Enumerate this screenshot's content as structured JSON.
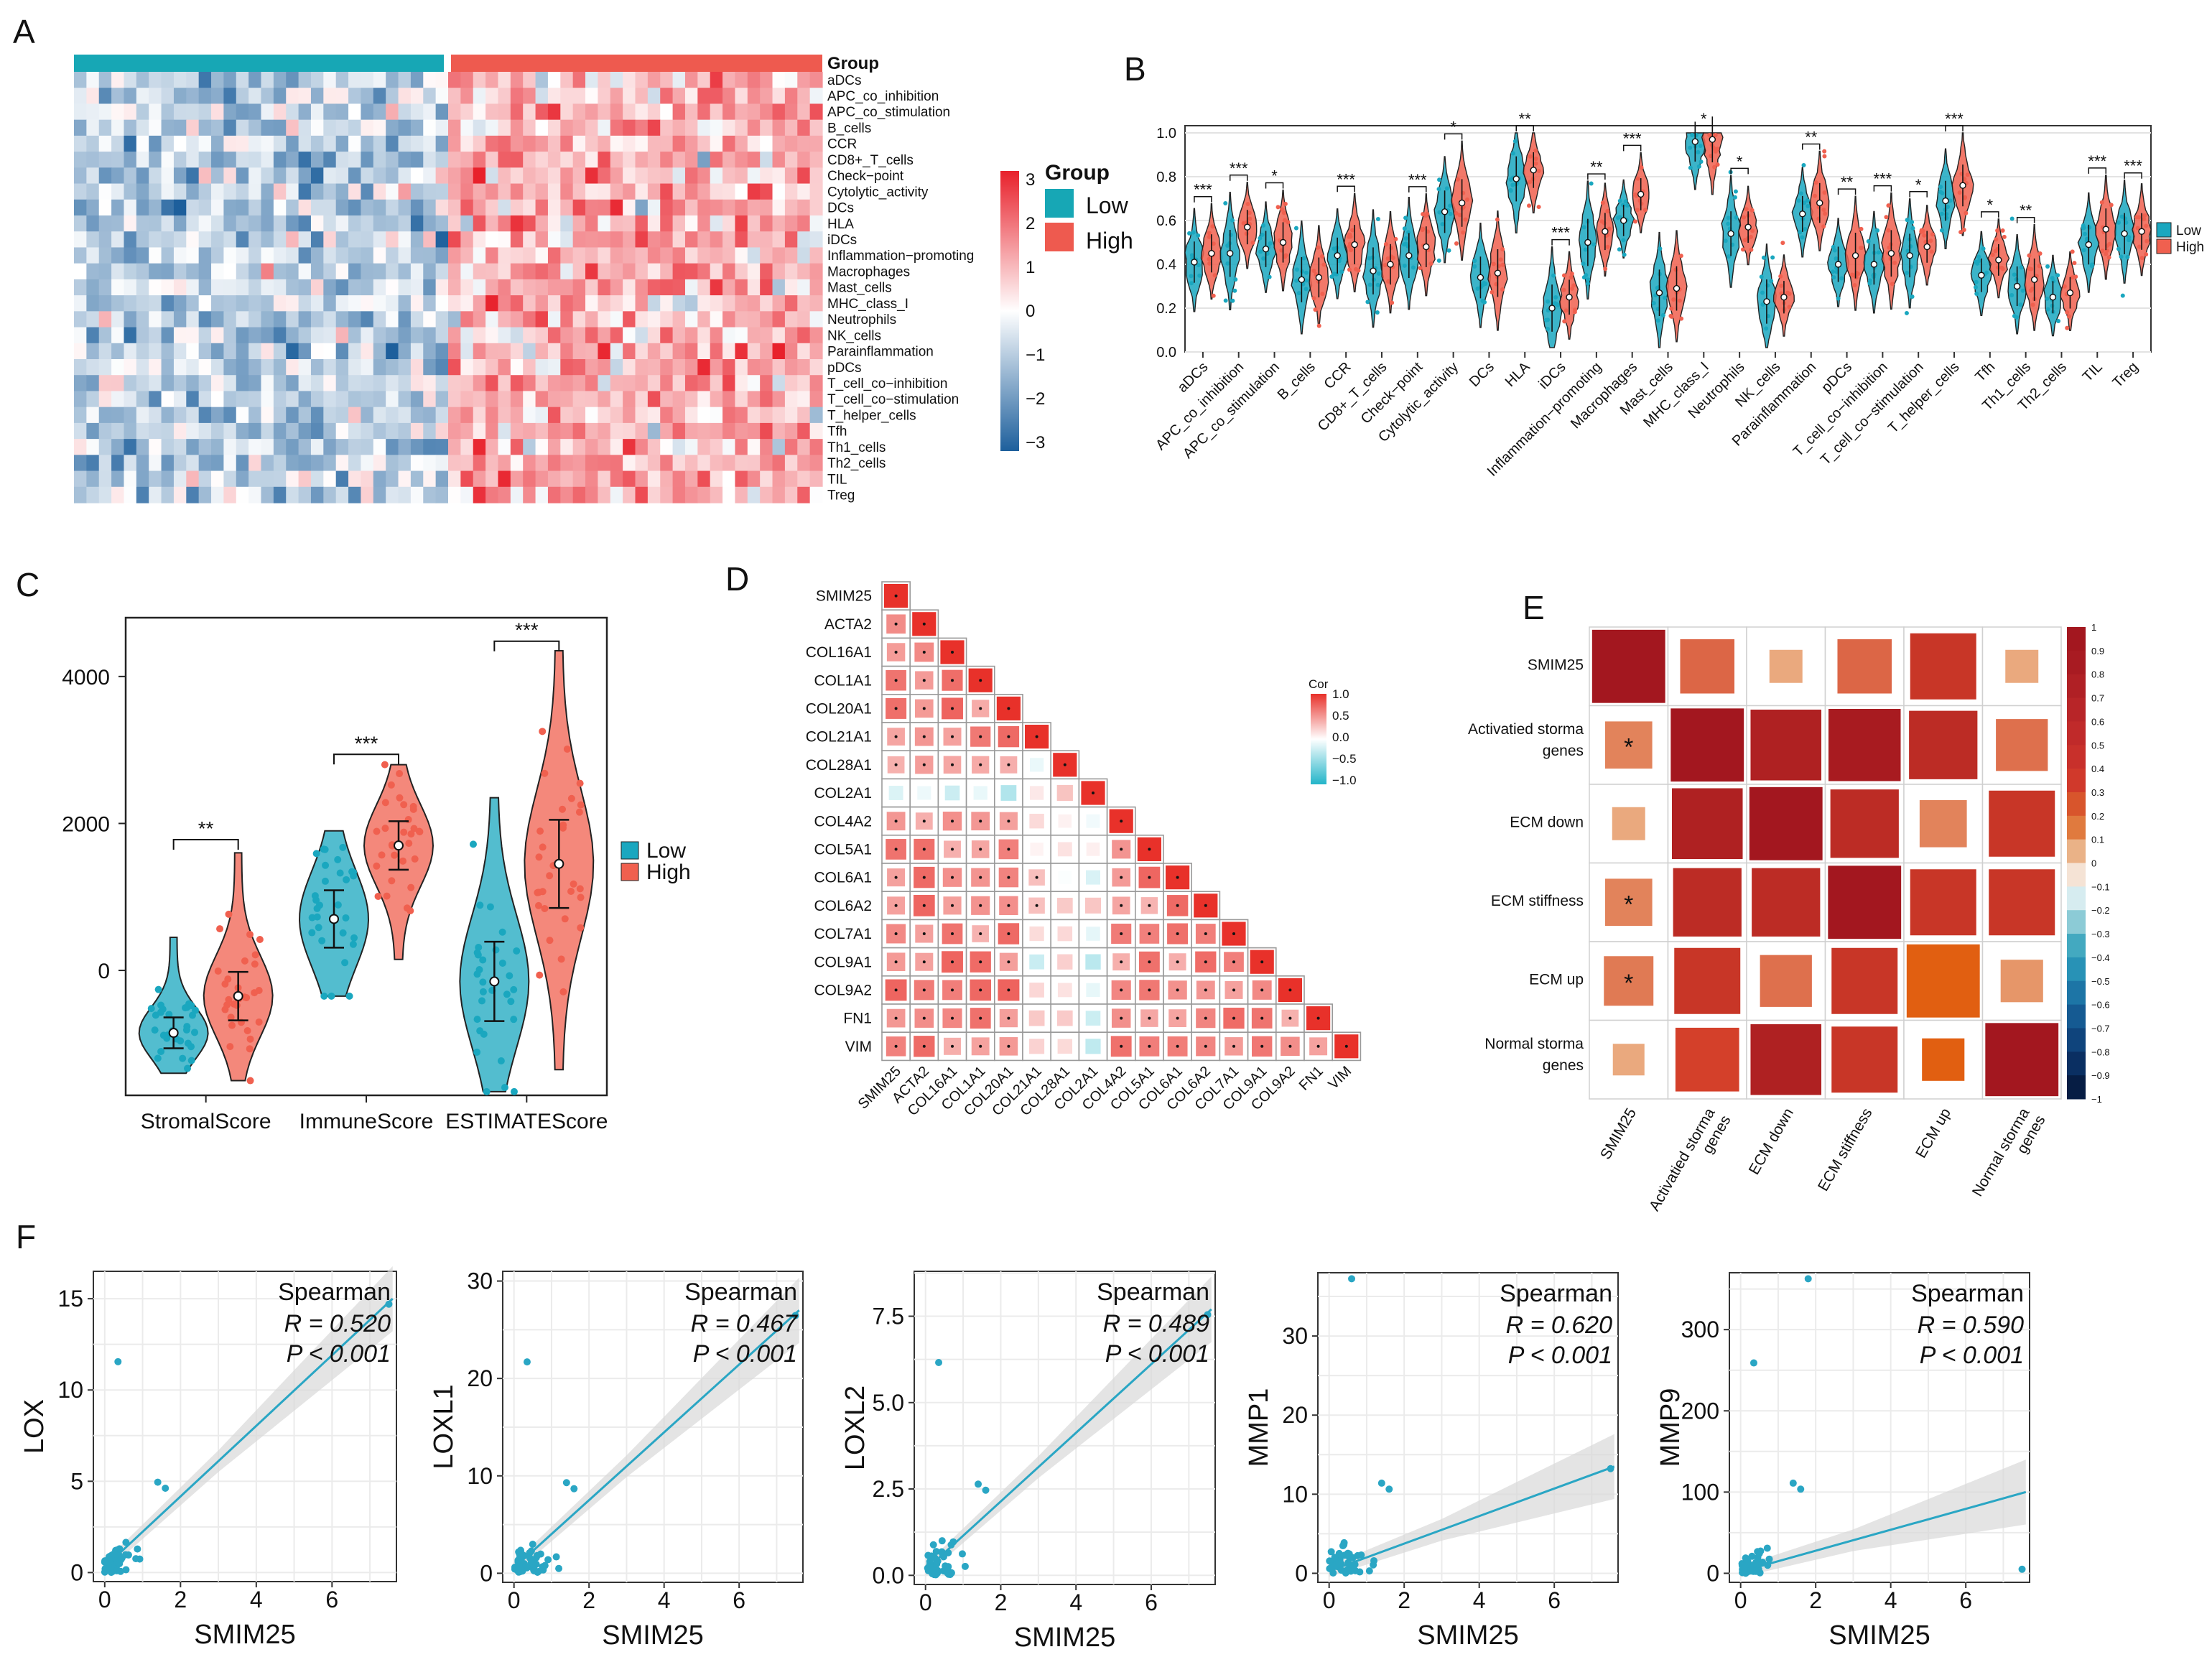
{
  "panel_labels": {
    "A": "A",
    "B": "B",
    "C": "C",
    "D": "D",
    "E": "E",
    "F": "F"
  },
  "colors": {
    "low": "#17a2b8",
    "high": "#ef5b4c",
    "low_fill": "#1aa7bf",
    "high_fill": "#f0604f",
    "fit": "#2aa6c4",
    "ci": "#d8d8d8"
  },
  "chart_data": [
    {
      "panel": "A",
      "type": "heatmap",
      "annotation_title": "Group",
      "legend_title": "Group",
      "groups": [
        "Low",
        "High"
      ],
      "scale_ticks": [
        "3",
        "2",
        "1",
        "0",
        "−1",
        "−2",
        "−3"
      ],
      "rows": [
        "aDCs",
        "APC_co_inhibition",
        "APC_co_stimulation",
        "B_cells",
        "CCR",
        "CD8+_T_cells",
        "Check−point",
        "Cytolytic_activity",
        "DCs",
        "HLA",
        "iDCs",
        "Inflammation−promoting",
        "Macrophages",
        "Mast_cells",
        "MHC_class_I",
        "Neutrophils",
        "NK_cells",
        "Parainflammation",
        "pDCs",
        "T_cell_co−inhibition",
        "T_cell_co−stimulation",
        "T_helper_cells",
        "Tfh",
        "Th1_cells",
        "Th2_cells",
        "TIL",
        "Treg"
      ],
      "n_low": 30,
      "n_high": 30,
      "low_mean": -0.9,
      "high_mean": 1.0
    },
    {
      "panel": "B",
      "type": "violin",
      "yticks": [
        "1.0",
        "0.8",
        "0.6",
        "0.4",
        "0.2",
        "0.0"
      ],
      "ylim": [
        0,
        1.0
      ],
      "legend": [
        "Low",
        "High"
      ],
      "categories": [
        "aDCs",
        "APC_co_inhibition",
        "APC_co_stimulation",
        "B_cells",
        "CCR",
        "CD8+_T_cells",
        "Check−point",
        "Cytolytic_activity",
        "DCs",
        "HLA",
        "iDCs",
        "Inflammation−promoting",
        "Macrophages",
        "Mast_cells",
        "MHC_class_I",
        "Neutrophils",
        "NK_cells",
        "Parainflammation",
        "pDCs",
        "T_cell_co−inhibition",
        "T_cell_co−stimulation",
        "T_helper_cells",
        "Tfh",
        "Th1_cells",
        "Th2_cells",
        "TIL",
        "Treg"
      ],
      "low_medians": [
        0.41,
        0.45,
        0.47,
        0.33,
        0.44,
        0.37,
        0.44,
        0.64,
        0.34,
        0.79,
        0.2,
        0.5,
        0.6,
        0.27,
        0.96,
        0.54,
        0.23,
        0.63,
        0.4,
        0.4,
        0.44,
        0.69,
        0.35,
        0.3,
        0.25,
        0.49,
        0.54
      ],
      "high_medians": [
        0.45,
        0.57,
        0.5,
        0.34,
        0.49,
        0.4,
        0.48,
        0.68,
        0.36,
        0.83,
        0.25,
        0.55,
        0.72,
        0.29,
        0.97,
        0.57,
        0.25,
        0.68,
        0.44,
        0.45,
        0.48,
        0.76,
        0.42,
        0.33,
        0.27,
        0.56,
        0.55
      ],
      "significance": [
        "***",
        "***",
        "*",
        "",
        "***",
        "",
        "***",
        "*",
        "",
        "**",
        "***",
        "**",
        "***",
        "",
        "*",
        "*",
        "",
        "**",
        "**",
        "***",
        "*",
        "***",
        "*",
        "**",
        "",
        "***",
        "***"
      ]
    },
    {
      "panel": "C",
      "type": "violin",
      "categories": [
        "StromalScore",
        "ImmuneScore",
        "ESTIMATEScore"
      ],
      "yticks": [
        "4000",
        "2000",
        "0"
      ],
      "ylim": [
        -1700,
        4800
      ],
      "legend": [
        "Low",
        "High"
      ],
      "low_medians": [
        -850,
        700,
        -150
      ],
      "high_medians": [
        -350,
        1700,
        1450
      ],
      "significance": [
        "**",
        "***",
        "***"
      ]
    },
    {
      "panel": "D",
      "type": "heatmap",
      "genes": [
        "SMIM25",
        "ACTA2",
        "COL16A1",
        "COL1A1",
        "COL20A1",
        "COL21A1",
        "COL28A1",
        "COL2A1",
        "COL4A2",
        "COL5A1",
        "COL6A1",
        "COL6A2",
        "COL7A1",
        "COL9A1",
        "COL9A2",
        "FN1",
        "VIM"
      ],
      "legend_title": "Cor",
      "legend_ticks": [
        "1.0",
        "0.5",
        "0.0",
        "−0.5",
        "−1.0"
      ]
    },
    {
      "panel": "E",
      "type": "heatmap",
      "labels": [
        "SMIM25",
        "Activatied storma genes",
        "ECM down",
        "ECM stiffness",
        "ECM up",
        "Normal storma genes"
      ],
      "x_labels": [
        "SMIM25",
        "Activatied storma genes",
        "ECM down",
        "ECM stiffness",
        "ECM up",
        "Normal storma genes"
      ],
      "scale_ticks": [
        "1",
        "0.9",
        "0.8",
        "0.7",
        "0.6",
        "0.5",
        "0.4",
        "0.3",
        "0.2",
        "0.1",
        "0",
        "−0.1",
        "−0.2",
        "−0.3",
        "−0.4",
        "−0.5",
        "−0.6",
        "−0.7",
        "−0.8",
        "−0.9",
        "−1"
      ],
      "star": "*"
    },
    {
      "panel": "F",
      "type": "scatter",
      "xlabel": "SMIM25",
      "method": "Spearman",
      "plots": [
        {
          "ylabel": "LOX",
          "R": "R = 0.520",
          "P": "P < 0.001",
          "yticks": [
            "0",
            "5",
            "10",
            "15"
          ],
          "ymax": 16.5,
          "ystep": 5,
          "fit_end": 15.0
        },
        {
          "ylabel": "LOXL1",
          "R": "R = 0.467",
          "P": "P < 0.001",
          "yticks": [
            "0",
            "10",
            "20",
            "30"
          ],
          "ymax": 31,
          "ystep": 10,
          "fit_end": 27.0
        },
        {
          "ylabel": "LOXL2",
          "R": "R = 0.489",
          "P": "P < 0.001",
          "yticks": [
            "0.0",
            "2.5",
            "5.0",
            "7.5"
          ],
          "ymax": 8.8,
          "ystep": 2.5,
          "fit_end": 7.7
        },
        {
          "ylabel": "MMP1",
          "R": "R = 0.620",
          "P": "P < 0.001",
          "yticks": [
            "0",
            "10",
            "20",
            "30"
          ],
          "ymax": 38,
          "ystep": 10,
          "fit_end": 13.5
        },
        {
          "ylabel": "MMP9",
          "R": "R = 0.590",
          "P": "P < 0.001",
          "yticks": [
            "0",
            "100",
            "200",
            "300"
          ],
          "ymax": 370,
          "ystep": 100,
          "fit_end": 100
        }
      ],
      "xticks": [
        "0",
        "2",
        "4",
        "6"
      ]
    }
  ]
}
